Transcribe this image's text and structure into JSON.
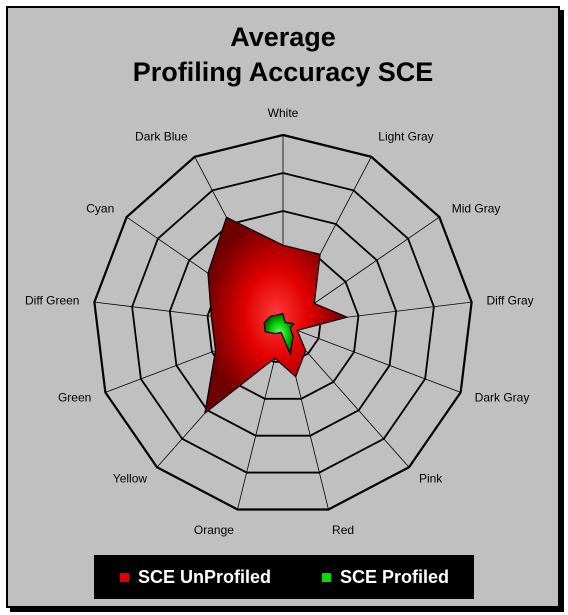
{
  "chart_data": {
    "type": "radar",
    "title": [
      "Average",
      "Profiling Accuracy SCE"
    ],
    "categories": [
      "White",
      "Light Gray",
      "Mid Gray",
      "Diff Gray",
      "Dark Gray",
      "Pink",
      "Red",
      "Orange",
      "Yellow",
      "Green",
      "Diff Green",
      "Cyan",
      "Dark Blue"
    ],
    "rlim": [
      0,
      5
    ],
    "rings": 5,
    "series": [
      {
        "name": "SCE UnProfiled",
        "color": "#e00000",
        "values": [
          2.1,
          2.1,
          1.0,
          1.7,
          0.4,
          0.9,
          1.4,
          0.9,
          3.1,
          1.9,
          1.9,
          2.4,
          3.2
        ]
      },
      {
        "name": "SCE Profiled",
        "color": "#00dd00",
        "values": [
          0.3,
          0.1,
          0.1,
          0.3,
          0.2,
          0.4,
          0.8,
          0.2,
          0.3,
          0.5,
          0.5,
          0.4,
          0.3
        ]
      }
    ],
    "legend_position": "bottom"
  }
}
